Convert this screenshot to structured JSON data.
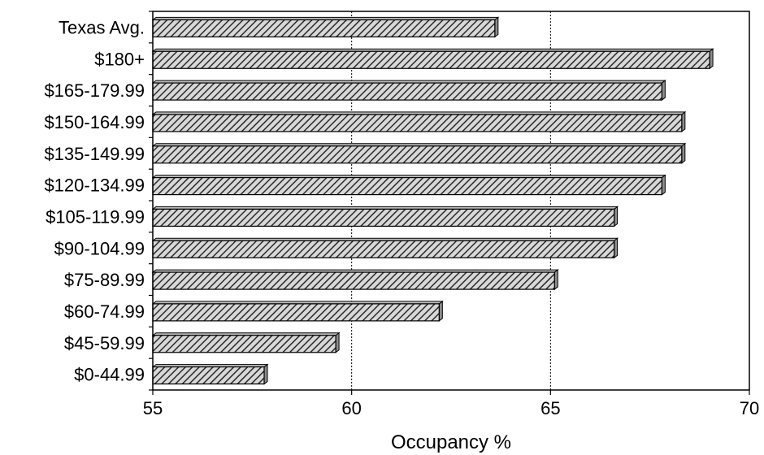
{
  "chart_data": {
    "type": "bar",
    "orientation": "horizontal",
    "categories": [
      "Texas Avg.",
      "$180+",
      "$165-179.99",
      "$150-164.99",
      "$135-149.99",
      "$120-134.99",
      "$105-119.99",
      "$90-104.99",
      "$75-89.99",
      "$60-74.99",
      "$45-59.99",
      "$0-44.99"
    ],
    "values": [
      63.6,
      69.0,
      67.8,
      68.3,
      68.3,
      67.8,
      66.6,
      66.6,
      65.1,
      62.2,
      59.6,
      57.8
    ],
    "xlabel": "Occupancy %",
    "ylabel": "",
    "xlim": [
      55,
      70
    ],
    "xticks": [
      "55",
      "60",
      "65",
      "70"
    ],
    "gridlines": "dotted vertical at 60 and 65",
    "bar_fill": "diagonal hatch",
    "colors": {
      "bar_dark": "#3a3a3a",
      "bar_light": "#d8d8d8",
      "axis": "#000000"
    }
  }
}
